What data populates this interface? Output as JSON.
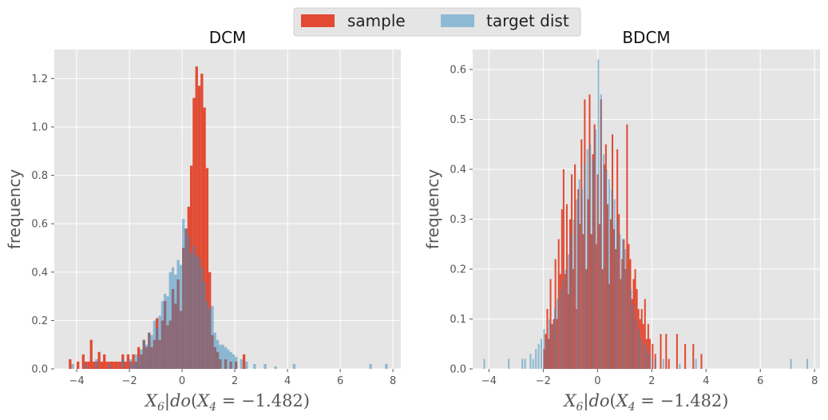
{
  "legend": {
    "items": [
      {
        "label": "sample",
        "color": "#E24A33"
      },
      {
        "label": "target dist",
        "color": "#8EBAD5"
      }
    ]
  },
  "colors": {
    "sample": "#E24A33",
    "target": "#348ABD",
    "target_alpha": 0.5,
    "background": "#E5E5E5",
    "grid": "#FFFFFF"
  },
  "chart_data": [
    {
      "type": "bar",
      "title": "DCM",
      "xlabel": "X_6|do(X_4 = -1.482)",
      "xlabel_parts": {
        "var": "X",
        "var_sub": "6",
        "pipe": "|",
        "op": "do",
        "inner": "X",
        "inner_sub": "4",
        "rest": " = −1.482)"
      },
      "ylabel": "frequency",
      "xlim": [
        -4.85,
        8.3
      ],
      "ylim": [
        0,
        1.32
      ],
      "xticks": [
        -4,
        -2,
        0,
        2,
        4,
        6,
        8
      ],
      "xtick_labels": [
        "−4",
        "−2",
        "0",
        "2",
        "4",
        "6",
        "8"
      ],
      "yticks": [
        0,
        0.2,
        0.4,
        0.6,
        0.8,
        1.0,
        1.2
      ],
      "ytick_labels": [
        "0.0",
        "0.2",
        "0.4",
        "0.6",
        "0.8",
        "1.0",
        "1.2"
      ],
      "bin_width": 0.1,
      "series": [
        {
          "name": "sample",
          "bins": [
            [
              -4.3,
              0.04
            ],
            [
              -4.0,
              0.03
            ],
            [
              -3.8,
              0.06
            ],
            [
              -3.7,
              0.03
            ],
            [
              -3.6,
              0.03
            ],
            [
              -3.5,
              0.12
            ],
            [
              -3.4,
              0.03
            ],
            [
              -3.3,
              0.03
            ],
            [
              -3.2,
              0.07
            ],
            [
              -3.1,
              0.03
            ],
            [
              -3.0,
              0.06
            ],
            [
              -2.9,
              0.03
            ],
            [
              -2.8,
              0.03
            ],
            [
              -2.7,
              0.03
            ],
            [
              -2.6,
              0.03
            ],
            [
              -2.5,
              0.03
            ],
            [
              -2.4,
              0.03
            ],
            [
              -2.3,
              0.06
            ],
            [
              -2.2,
              0.03
            ],
            [
              -2.1,
              0.06
            ],
            [
              -2.0,
              0.03
            ],
            [
              -1.9,
              0.06
            ],
            [
              -1.8,
              0.03
            ],
            [
              -1.7,
              0.09
            ],
            [
              -1.6,
              0.06
            ],
            [
              -1.5,
              0.12
            ],
            [
              -1.4,
              0.09
            ],
            [
              -1.3,
              0.15
            ],
            [
              -1.2,
              0.09
            ],
            [
              -1.1,
              0.12
            ],
            [
              -1.0,
              0.21
            ],
            [
              -0.9,
              0.12
            ],
            [
              -0.8,
              0.2
            ],
            [
              -0.7,
              0.28
            ],
            [
              -0.6,
              0.18
            ],
            [
              -0.5,
              0.2
            ],
            [
              -0.4,
              0.33
            ],
            [
              -0.3,
              0.27
            ],
            [
              -0.2,
              0.37
            ],
            [
              -0.1,
              0.24
            ],
            [
              0.0,
              0.5
            ],
            [
              0.1,
              0.58
            ],
            [
              0.2,
              0.67
            ],
            [
              0.3,
              0.84
            ],
            [
              0.4,
              1.12
            ],
            [
              0.5,
              1.25
            ],
            [
              0.6,
              1.17
            ],
            [
              0.7,
              1.22
            ],
            [
              0.8,
              1.08
            ],
            [
              0.9,
              0.83
            ],
            [
              1.0,
              0.4
            ],
            [
              1.1,
              0.14
            ],
            [
              1.2,
              0.09
            ],
            [
              1.3,
              0.07
            ],
            [
              1.4,
              0.04
            ],
            [
              1.6,
              0.04
            ],
            [
              1.8,
              0.03
            ],
            [
              2.0,
              0.03
            ],
            [
              2.3,
              0.06
            ]
          ]
        },
        {
          "name": "target dist",
          "bins": [
            [
              -4.2,
              0.02
            ],
            [
              -3.7,
              0.02
            ],
            [
              -3.3,
              0.04
            ],
            [
              -2.8,
              0.02
            ],
            [
              -2.3,
              0.04
            ],
            [
              -2.0,
              0.04
            ],
            [
              -1.9,
              0.02
            ],
            [
              -1.8,
              0.06
            ],
            [
              -1.7,
              0.05
            ],
            [
              -1.6,
              0.08
            ],
            [
              -1.5,
              0.12
            ],
            [
              -1.4,
              0.1
            ],
            [
              -1.3,
              0.15
            ],
            [
              -1.2,
              0.14
            ],
            [
              -1.1,
              0.2
            ],
            [
              -1.0,
              0.17
            ],
            [
              -0.9,
              0.22
            ],
            [
              -0.8,
              0.28
            ],
            [
              -0.7,
              0.31
            ],
            [
              -0.6,
              0.3
            ],
            [
              -0.5,
              0.4
            ],
            [
              -0.4,
              0.42
            ],
            [
              -0.3,
              0.39
            ],
            [
              -0.2,
              0.45
            ],
            [
              -0.1,
              0.43
            ],
            [
              0.0,
              0.62
            ],
            [
              0.1,
              0.58
            ],
            [
              0.2,
              0.55
            ],
            [
              0.3,
              0.48
            ],
            [
              0.4,
              0.51
            ],
            [
              0.5,
              0.47
            ],
            [
              0.6,
              0.46
            ],
            [
              0.7,
              0.42
            ],
            [
              0.8,
              0.36
            ],
            [
              0.9,
              0.28
            ],
            [
              1.0,
              0.25
            ],
            [
              1.1,
              0.26
            ],
            [
              1.2,
              0.15
            ],
            [
              1.3,
              0.12
            ],
            [
              1.4,
              0.1
            ],
            [
              1.5,
              0.1
            ],
            [
              1.6,
              0.09
            ],
            [
              1.7,
              0.08
            ],
            [
              1.8,
              0.07
            ],
            [
              1.9,
              0.06
            ],
            [
              2.0,
              0.05
            ],
            [
              2.2,
              0.04
            ],
            [
              2.4,
              0.03
            ],
            [
              2.7,
              0.02
            ],
            [
              3.1,
              0.02
            ],
            [
              3.5,
              0.01
            ],
            [
              4.2,
              0.02
            ],
            [
              7.1,
              0.02
            ],
            [
              7.7,
              0.02
            ]
          ]
        }
      ]
    },
    {
      "type": "bar",
      "title": "BDCM",
      "xlabel": "X_6|do(X_4 = -1.482)",
      "xlabel_parts": {
        "var": "X",
        "var_sub": "6",
        "pipe": "|",
        "op": "do",
        "inner": "X",
        "inner_sub": "4",
        "rest": " = −1.482)"
      },
      "ylabel": "frequency",
      "xlim": [
        -4.6,
        8.2
      ],
      "ylim": [
        0,
        0.64
      ],
      "xticks": [
        -4,
        -2,
        0,
        2,
        4,
        6,
        8
      ],
      "xtick_labels": [
        "−4",
        "−2",
        "0",
        "2",
        "4",
        "6",
        "8"
      ],
      "yticks": [
        0,
        0.1,
        0.2,
        0.3,
        0.4,
        0.5,
        0.6
      ],
      "ytick_labels": [
        "0.0",
        "0.1",
        "0.2",
        "0.3",
        "0.4",
        "0.5",
        "0.6"
      ],
      "bin_width": 0.06,
      "series": [
        {
          "name": "sample",
          "bins": [
            [
              -2.0,
              0.04
            ],
            [
              -1.94,
              0.07
            ],
            [
              -1.88,
              0.12
            ],
            [
              -1.82,
              0.06
            ],
            [
              -1.76,
              0.18
            ],
            [
              -1.7,
              0.09
            ],
            [
              -1.64,
              0.1
            ],
            [
              -1.58,
              0.22
            ],
            [
              -1.52,
              0.1
            ],
            [
              -1.46,
              0.26
            ],
            [
              -1.4,
              0.19
            ],
            [
              -1.34,
              0.32
            ],
            [
              -1.28,
              0.4
            ],
            [
              -1.22,
              0.19
            ],
            [
              -1.16,
              0.33
            ],
            [
              -1.1,
              0.15
            ],
            [
              -1.04,
              0.3
            ],
            [
              -0.98,
              0.39
            ],
            [
              -0.92,
              0.2
            ],
            [
              -0.86,
              0.41
            ],
            [
              -0.8,
              0.12
            ],
            [
              -0.74,
              0.36
            ],
            [
              -0.68,
              0.29
            ],
            [
              -0.62,
              0.46
            ],
            [
              -0.56,
              0.27
            ],
            [
              -0.5,
              0.54
            ],
            [
              -0.44,
              0.2
            ],
            [
              -0.38,
              0.34
            ],
            [
              -0.32,
              0.55
            ],
            [
              -0.26,
              0.27
            ],
            [
              -0.2,
              0.43
            ],
            [
              -0.14,
              0.49
            ],
            [
              -0.08,
              0.25
            ],
            [
              -0.02,
              0.39
            ],
            [
              0.04,
              0.29
            ],
            [
              0.1,
              0.54
            ],
            [
              0.16,
              0.2
            ],
            [
              0.22,
              0.41
            ],
            [
              0.28,
              0.45
            ],
            [
              0.34,
              0.33
            ],
            [
              0.4,
              0.17
            ],
            [
              0.46,
              0.3
            ],
            [
              0.52,
              0.47
            ],
            [
              0.58,
              0.28
            ],
            [
              0.64,
              0.24
            ],
            [
              0.7,
              0.44
            ],
            [
              0.76,
              0.31
            ],
            [
              0.82,
              0.18
            ],
            [
              0.88,
              0.22
            ],
            [
              0.94,
              0.26
            ],
            [
              1.0,
              0.2
            ],
            [
              1.06,
              0.49
            ],
            [
              1.12,
              0.25
            ],
            [
              1.18,
              0.22
            ],
            [
              1.24,
              0.14
            ],
            [
              1.3,
              0.18
            ],
            [
              1.36,
              0.2
            ],
            [
              1.42,
              0.16
            ],
            [
              1.48,
              0.12
            ],
            [
              1.54,
              0.1
            ],
            [
              1.6,
              0.12
            ],
            [
              1.66,
              0.09
            ],
            [
              1.72,
              0.14
            ],
            [
              1.78,
              0.06
            ],
            [
              1.84,
              0.09
            ],
            [
              1.9,
              0.06
            ],
            [
              2.0,
              0.05
            ],
            [
              2.1,
              0.03
            ],
            [
              2.3,
              0.07
            ],
            [
              2.5,
              0.07
            ],
            [
              2.6,
              0.02
            ],
            [
              2.9,
              0.07
            ],
            [
              3.2,
              0.05
            ],
            [
              3.5,
              0.05
            ],
            [
              3.8,
              0.03
            ]
          ]
        },
        {
          "name": "target dist",
          "bins": [
            [
              -4.2,
              0.02
            ],
            [
              -3.3,
              0.02
            ],
            [
              -2.8,
              0.02
            ],
            [
              -2.7,
              0.02
            ],
            [
              -2.5,
              0.03
            ],
            [
              -2.4,
              0.02
            ],
            [
              -2.3,
              0.04
            ],
            [
              -2.2,
              0.05
            ],
            [
              -2.1,
              0.06
            ],
            [
              -2.0,
              0.08
            ],
            [
              -1.9,
              0.06
            ],
            [
              -1.8,
              0.1
            ],
            [
              -1.7,
              0.09
            ],
            [
              -1.6,
              0.12
            ],
            [
              -1.5,
              0.14
            ],
            [
              -1.4,
              0.16
            ],
            [
              -1.3,
              0.18
            ],
            [
              -1.2,
              0.2
            ],
            [
              -1.1,
              0.23
            ],
            [
              -1.0,
              0.27
            ],
            [
              -0.9,
              0.3
            ],
            [
              -0.8,
              0.34
            ],
            [
              -0.7,
              0.38
            ],
            [
              -0.6,
              0.36
            ],
            [
              -0.5,
              0.41
            ],
            [
              -0.4,
              0.44
            ],
            [
              -0.3,
              0.45
            ],
            [
              -0.2,
              0.42
            ],
            [
              -0.1,
              0.48
            ],
            [
              0.0,
              0.62
            ],
            [
              0.1,
              0.55
            ],
            [
              0.2,
              0.43
            ],
            [
              0.3,
              0.4
            ],
            [
              0.4,
              0.38
            ],
            [
              0.5,
              0.36
            ],
            [
              0.6,
              0.34
            ],
            [
              0.7,
              0.3
            ],
            [
              0.8,
              0.27
            ],
            [
              0.9,
              0.26
            ],
            [
              1.0,
              0.24
            ],
            [
              1.1,
              0.2
            ],
            [
              1.2,
              0.16
            ],
            [
              1.3,
              0.13
            ],
            [
              1.4,
              0.1
            ],
            [
              1.5,
              0.08
            ],
            [
              1.6,
              0.06
            ],
            [
              1.7,
              0.05
            ],
            [
              1.8,
              0.04
            ],
            [
              1.9,
              0.03
            ],
            [
              2.1,
              0.02
            ],
            [
              2.4,
              0.02
            ],
            [
              3.0,
              0.01
            ],
            [
              3.6,
              0.02
            ],
            [
              7.1,
              0.02
            ],
            [
              7.7,
              0.02
            ]
          ]
        }
      ]
    }
  ]
}
